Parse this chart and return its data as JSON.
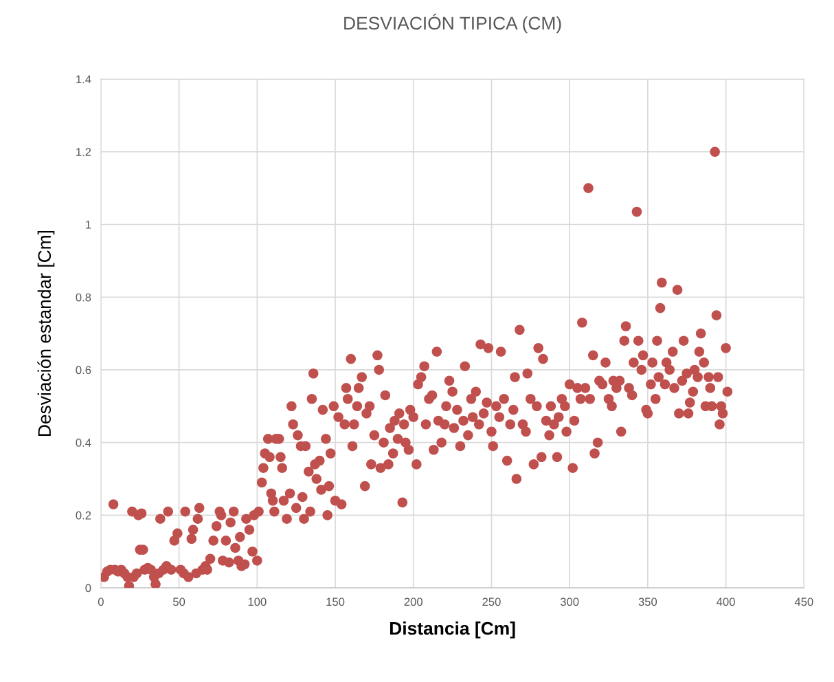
{
  "chart_data": {
    "type": "scatter",
    "title": "DESVIACIÓN TIPICA (CM)",
    "xlabel": "Distancia [Cm]",
    "ylabel": "Desviación estandar [Cm]",
    "xlim": [
      0,
      450
    ],
    "xticks": [
      0,
      50,
      100,
      150,
      200,
      250,
      300,
      350,
      400,
      450
    ],
    "ylim": [
      0,
      1.4
    ],
    "yticks": [
      0,
      0.2,
      0.4,
      0.6,
      0.8,
      1,
      1.2,
      1.4
    ],
    "grid": true,
    "marker": "circle",
    "series": [
      {
        "color": "#c0504d",
        "x": [
          2,
          4,
          6,
          8,
          9,
          11,
          13,
          15,
          17,
          18,
          20,
          21,
          23,
          24,
          25,
          26,
          27,
          28,
          30,
          32,
          34,
          35,
          37,
          38,
          40,
          42,
          43,
          45,
          47,
          49,
          51,
          53,
          54,
          56,
          58,
          59,
          61,
          62,
          63,
          65,
          67,
          68,
          70,
          72,
          74,
          76,
          77,
          78,
          80,
          82,
          83,
          85,
          86,
          88,
          89,
          90,
          92,
          93,
          95,
          97,
          98,
          100,
          101,
          103,
          104,
          105,
          107,
          108,
          109,
          110,
          111,
          112,
          114,
          115,
          116,
          117,
          119,
          121,
          122,
          123,
          125,
          126,
          128,
          129,
          130,
          131,
          133,
          134,
          135,
          136,
          137,
          138,
          140,
          141,
          142,
          144,
          145,
          146,
          147,
          149,
          150,
          152,
          154,
          156,
          157,
          158,
          160,
          161,
          162,
          164,
          165,
          167,
          169,
          170,
          172,
          173,
          175,
          177,
          178,
          179,
          181,
          182,
          184,
          185,
          187,
          188,
          190,
          191,
          193,
          194,
          195,
          197,
          198,
          200,
          202,
          203,
          205,
          207,
          208,
          210,
          212,
          213,
          215,
          216,
          218,
          220,
          221,
          223,
          225,
          226,
          228,
          230,
          232,
          233,
          235,
          237,
          238,
          240,
          242,
          243,
          245,
          247,
          248,
          250,
          251,
          253,
          255,
          256,
          258,
          260,
          262,
          264,
          265,
          266,
          268,
          270,
          272,
          273,
          275,
          277,
          279,
          280,
          282,
          283,
          285,
          287,
          288,
          290,
          292,
          293,
          295,
          297,
          298,
          300,
          302,
          303,
          305,
          307,
          308,
          310,
          312,
          313,
          315,
          316,
          318,
          319,
          321,
          323,
          325,
          327,
          328,
          330,
          332,
          333,
          335,
          336,
          338,
          340,
          341,
          343,
          344,
          346,
          347,
          349,
          350,
          352,
          353,
          355,
          356,
          357,
          358,
          359,
          361,
          362,
          364,
          366,
          367,
          369,
          370,
          372,
          373,
          375,
          376,
          377,
          379,
          380,
          382,
          383,
          384,
          386,
          387,
          389,
          390,
          391,
          393,
          394,
          395,
          396,
          397,
          398,
          400,
          401
        ],
        "values": [
          0.03,
          0.045,
          0.05,
          0.23,
          0.05,
          0.045,
          0.05,
          0.04,
          0.03,
          0.005,
          0.21,
          0.03,
          0.04,
          0.2,
          0.105,
          0.205,
          0.105,
          0.05,
          0.055,
          0.05,
          0.03,
          0.01,
          0.04,
          0.19,
          0.05,
          0.06,
          0.21,
          0.05,
          0.13,
          0.15,
          0.05,
          0.04,
          0.21,
          0.03,
          0.135,
          0.16,
          0.04,
          0.19,
          0.22,
          0.05,
          0.06,
          0.05,
          0.08,
          0.13,
          0.17,
          0.21,
          0.2,
          0.075,
          0.13,
          0.07,
          0.18,
          0.21,
          0.11,
          0.075,
          0.14,
          0.06,
          0.065,
          0.19,
          0.16,
          0.1,
          0.2,
          0.075,
          0.21,
          0.29,
          0.33,
          0.37,
          0.41,
          0.36,
          0.26,
          0.24,
          0.21,
          0.41,
          0.41,
          0.36,
          0.33,
          0.24,
          0.19,
          0.26,
          0.5,
          0.45,
          0.22,
          0.42,
          0.39,
          0.25,
          0.19,
          0.39,
          0.32,
          0.21,
          0.52,
          0.59,
          0.34,
          0.3,
          0.35,
          0.27,
          0.49,
          0.41,
          0.2,
          0.28,
          0.37,
          0.5,
          0.24,
          0.47,
          0.23,
          0.45,
          0.55,
          0.52,
          0.63,
          0.39,
          0.45,
          0.5,
          0.55,
          0.58,
          0.28,
          0.48,
          0.5,
          0.34,
          0.42,
          0.64,
          0.6,
          0.33,
          0.4,
          0.53,
          0.34,
          0.44,
          0.37,
          0.46,
          0.41,
          0.48,
          0.235,
          0.45,
          0.4,
          0.38,
          0.49,
          0.47,
          0.34,
          0.56,
          0.58,
          0.61,
          0.45,
          0.52,
          0.53,
          0.38,
          0.65,
          0.46,
          0.4,
          0.45,
          0.5,
          0.57,
          0.54,
          0.44,
          0.49,
          0.39,
          0.46,
          0.61,
          0.42,
          0.52,
          0.47,
          0.54,
          0.45,
          0.67,
          0.48,
          0.51,
          0.66,
          0.43,
          0.39,
          0.5,
          0.47,
          0.65,
          0.52,
          0.35,
          0.45,
          0.49,
          0.58,
          0.3,
          0.71,
          0.45,
          0.43,
          0.59,
          0.52,
          0.34,
          0.5,
          0.66,
          0.36,
          0.63,
          0.46,
          0.42,
          0.5,
          0.45,
          0.36,
          0.47,
          0.52,
          0.5,
          0.43,
          0.56,
          0.33,
          0.46,
          0.55,
          0.52,
          0.73,
          0.55,
          1.1,
          0.52,
          0.64,
          0.37,
          0.4,
          0.57,
          0.56,
          0.62,
          0.52,
          0.5,
          0.57,
          0.55,
          0.57,
          0.43,
          0.68,
          0.72,
          0.55,
          0.53,
          0.62,
          1.035,
          0.68,
          0.6,
          0.64,
          0.49,
          0.48,
          0.56,
          0.62,
          0.52,
          0.68,
          0.58,
          0.77,
          0.84,
          0.56,
          0.62,
          0.6,
          0.65,
          0.55,
          0.82,
          0.48,
          0.57,
          0.68,
          0.59,
          0.48,
          0.51,
          0.54,
          0.6,
          0.58,
          0.65,
          0.7,
          0.62,
          0.5,
          0.58,
          0.55,
          0.5,
          1.2,
          0.75,
          0.58,
          0.45,
          0.5,
          0.48,
          0.66,
          0.54
        ]
      }
    ]
  }
}
